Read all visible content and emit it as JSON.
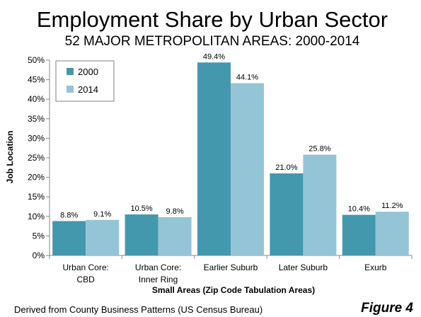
{
  "chart_data": {
    "type": "bar",
    "title": "Employment Share by Urban Sector",
    "subtitle": "52 MAJOR METROPOLITAN AREAS: 2000-2014",
    "xlabel": "Small Areas (Zip Code Tabulation Areas)",
    "ylabel": "Job Location",
    "ylim": [
      0,
      50
    ],
    "yticks": [
      "0%",
      "5%",
      "10%",
      "15%",
      "20%",
      "25%",
      "30%",
      "35%",
      "40%",
      "45%",
      "50%"
    ],
    "categories": [
      [
        "Urban Core:",
        "CBD"
      ],
      [
        "Urban Core:",
        "Inner Ring"
      ],
      [
        "Earlier Suburb"
      ],
      [
        "Later Suburb"
      ],
      [
        "Exurb"
      ]
    ],
    "series": [
      {
        "name": "2000",
        "color": "#4398ad",
        "values": [
          8.8,
          10.5,
          49.4,
          21.0,
          10.4
        ],
        "labels": [
          "8.8%",
          "10.5%",
          "49.4%",
          "21.0%",
          "10.4%"
        ]
      },
      {
        "name": "2014",
        "color": "#93c5d6",
        "values": [
          9.1,
          9.8,
          44.1,
          25.8,
          11.2
        ],
        "labels": [
          "9.1%",
          "9.8%",
          "44.1%",
          "25.8%",
          "11.2%"
        ]
      }
    ],
    "grid": false,
    "legend_position": "top-left"
  },
  "source_note": "Derived from County Business Patterns (US Census Bureau)",
  "figure_label": "Figure 4"
}
